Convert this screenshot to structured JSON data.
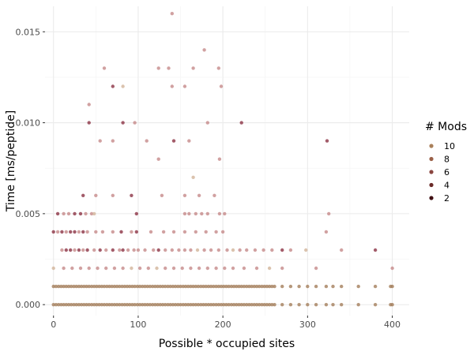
{
  "chart_data": {
    "type": "scatter",
    "xlabel": "Possible * occupied sites",
    "ylabel": "Time [ms/peptide]",
    "xlim": [
      -10,
      420
    ],
    "ylim": [
      -0.0006,
      0.0164
    ],
    "x_ticks": [
      0,
      100,
      200,
      300,
      400
    ],
    "x_tick_labels": [
      "0",
      "100",
      "200",
      "300",
      "400"
    ],
    "y_ticks": [
      0,
      0.005,
      0.01,
      0.015
    ],
    "y_tick_labels": [
      "0.000",
      "0.005",
      "0.010",
      "0.015"
    ],
    "grid": true,
    "legend": {
      "title": "# Mods",
      "placement": "right",
      "entries": [
        {
          "label": "10",
          "value": 10,
          "color": "#a9805a"
        },
        {
          "label": "8",
          "value": 8,
          "color": "#9a6048"
        },
        {
          "label": "6",
          "value": 6,
          "color": "#8a4640"
        },
        {
          "label": "4",
          "value": 4,
          "color": "#6a2a28"
        },
        {
          "label": "2",
          "value": 2,
          "color": "#3f0f12"
        }
      ]
    },
    "point_colors": {
      "pale": "#d2b49a",
      "pink": "#c58a8a",
      "brown": "#a47e5b",
      "dark": "#8c3345"
    },
    "points": [
      {
        "x": 140,
        "y": 0.016,
        "c": "pink"
      },
      {
        "x": 178,
        "y": 0.014,
        "c": "pink"
      },
      {
        "x": 60,
        "y": 0.013,
        "c": "pink"
      },
      {
        "x": 124,
        "y": 0.013,
        "c": "pink"
      },
      {
        "x": 136,
        "y": 0.013,
        "c": "pink"
      },
      {
        "x": 165,
        "y": 0.013,
        "c": "pink"
      },
      {
        "x": 195,
        "y": 0.013,
        "c": "pink"
      },
      {
        "x": 70,
        "y": 0.012,
        "c": "dark"
      },
      {
        "x": 82,
        "y": 0.012,
        "c": "pale"
      },
      {
        "x": 140,
        "y": 0.012,
        "c": "pink"
      },
      {
        "x": 155,
        "y": 0.012,
        "c": "pink"
      },
      {
        "x": 198,
        "y": 0.012,
        "c": "pink"
      },
      {
        "x": 42,
        "y": 0.011,
        "c": "pink"
      },
      {
        "x": 42,
        "y": 0.01,
        "c": "dark"
      },
      {
        "x": 82,
        "y": 0.01,
        "c": "dark"
      },
      {
        "x": 96,
        "y": 0.01,
        "c": "pink"
      },
      {
        "x": 182,
        "y": 0.01,
        "c": "pink"
      },
      {
        "x": 222,
        "y": 0.01,
        "c": "dark"
      },
      {
        "x": 55,
        "y": 0.009,
        "c": "pink"
      },
      {
        "x": 70,
        "y": 0.009,
        "c": "pink"
      },
      {
        "x": 110,
        "y": 0.009,
        "c": "pink"
      },
      {
        "x": 142,
        "y": 0.009,
        "c": "dark"
      },
      {
        "x": 160,
        "y": 0.009,
        "c": "pink"
      },
      {
        "x": 323,
        "y": 0.009,
        "c": "dark"
      },
      {
        "x": 124,
        "y": 0.008,
        "c": "pink"
      },
      {
        "x": 196,
        "y": 0.008,
        "c": "pink"
      },
      {
        "x": 165,
        "y": 0.007,
        "c": "pale"
      },
      {
        "x": 35,
        "y": 0.006,
        "c": "dark"
      },
      {
        "x": 50,
        "y": 0.006,
        "c": "pink"
      },
      {
        "x": 70,
        "y": 0.006,
        "c": "pink"
      },
      {
        "x": 92,
        "y": 0.006,
        "c": "dark"
      },
      {
        "x": 128,
        "y": 0.006,
        "c": "pink"
      },
      {
        "x": 155,
        "y": 0.006,
        "c": "pink"
      },
      {
        "x": 172,
        "y": 0.006,
        "c": "pink"
      },
      {
        "x": 190,
        "y": 0.006,
        "c": "pink"
      },
      {
        "x": 5,
        "y": 0.005,
        "c": "dark"
      },
      {
        "x": 12,
        "y": 0.005,
        "c": "pink"
      },
      {
        "x": 18,
        "y": 0.005,
        "c": "pink"
      },
      {
        "x": 25,
        "y": 0.005,
        "c": "dark"
      },
      {
        "x": 32,
        "y": 0.005,
        "c": "dark"
      },
      {
        "x": 38,
        "y": 0.005,
        "c": "pink"
      },
      {
        "x": 45,
        "y": 0.005,
        "c": "pink"
      },
      {
        "x": 48,
        "y": 0.005,
        "c": "pale"
      },
      {
        "x": 98,
        "y": 0.005,
        "c": "dark"
      },
      {
        "x": 155,
        "y": 0.005,
        "c": "pink"
      },
      {
        "x": 160,
        "y": 0.005,
        "c": "pink"
      },
      {
        "x": 168,
        "y": 0.005,
        "c": "pink"
      },
      {
        "x": 175,
        "y": 0.005,
        "c": "pink"
      },
      {
        "x": 182,
        "y": 0.005,
        "c": "pink"
      },
      {
        "x": 196,
        "y": 0.005,
        "c": "pink"
      },
      {
        "x": 202,
        "y": 0.005,
        "c": "pink"
      },
      {
        "x": 325,
        "y": 0.005,
        "c": "pink"
      },
      {
        "x": 0,
        "y": 0.004,
        "c": "dark"
      },
      {
        "x": 5,
        "y": 0.004,
        "c": "pink"
      },
      {
        "x": 10,
        "y": 0.004,
        "c": "dark"
      },
      {
        "x": 15,
        "y": 0.004,
        "c": "pink"
      },
      {
        "x": 20,
        "y": 0.004,
        "c": "dark"
      },
      {
        "x": 25,
        "y": 0.004,
        "c": "dark"
      },
      {
        "x": 30,
        "y": 0.004,
        "c": "pink"
      },
      {
        "x": 35,
        "y": 0.004,
        "c": "dark"
      },
      {
        "x": 40,
        "y": 0.004,
        "c": "pink"
      },
      {
        "x": 50,
        "y": 0.004,
        "c": "pink"
      },
      {
        "x": 58,
        "y": 0.004,
        "c": "pink"
      },
      {
        "x": 70,
        "y": 0.004,
        "c": "pink"
      },
      {
        "x": 80,
        "y": 0.004,
        "c": "dark"
      },
      {
        "x": 92,
        "y": 0.004,
        "c": "pink"
      },
      {
        "x": 98,
        "y": 0.004,
        "c": "dark"
      },
      {
        "x": 115,
        "y": 0.004,
        "c": "pink"
      },
      {
        "x": 130,
        "y": 0.004,
        "c": "pink"
      },
      {
        "x": 142,
        "y": 0.004,
        "c": "pink"
      },
      {
        "x": 155,
        "y": 0.004,
        "c": "pink"
      },
      {
        "x": 168,
        "y": 0.004,
        "c": "pink"
      },
      {
        "x": 180,
        "y": 0.004,
        "c": "pink"
      },
      {
        "x": 192,
        "y": 0.004,
        "c": "pink"
      },
      {
        "x": 200,
        "y": 0.004,
        "c": "pink"
      },
      {
        "x": 322,
        "y": 0.004,
        "c": "pink"
      },
      {
        "x": 10,
        "y": 0.003,
        "c": "pink"
      },
      {
        "x": 15,
        "y": 0.003,
        "c": "dark"
      },
      {
        "x": 20,
        "y": 0.003,
        "c": "dark"
      },
      {
        "x": 25,
        "y": 0.003,
        "c": "pink"
      },
      {
        "x": 30,
        "y": 0.003,
        "c": "dark"
      },
      {
        "x": 35,
        "y": 0.003,
        "c": "pink"
      },
      {
        "x": 40,
        "y": 0.003,
        "c": "dark"
      },
      {
        "x": 48,
        "y": 0.003,
        "c": "pink"
      },
      {
        "x": 55,
        "y": 0.003,
        "c": "dark"
      },
      {
        "x": 62,
        "y": 0.003,
        "c": "pink"
      },
      {
        "x": 70,
        "y": 0.003,
        "c": "dark"
      },
      {
        "x": 78,
        "y": 0.003,
        "c": "pink"
      },
      {
        "x": 82,
        "y": 0.003,
        "c": "dark"
      },
      {
        "x": 88,
        "y": 0.003,
        "c": "pink"
      },
      {
        "x": 95,
        "y": 0.003,
        "c": "pink"
      },
      {
        "x": 100,
        "y": 0.003,
        "c": "pink"
      },
      {
        "x": 108,
        "y": 0.003,
        "c": "pink"
      },
      {
        "x": 118,
        "y": 0.003,
        "c": "pink"
      },
      {
        "x": 124,
        "y": 0.003,
        "c": "dark"
      },
      {
        "x": 132,
        "y": 0.003,
        "c": "pink"
      },
      {
        "x": 140,
        "y": 0.003,
        "c": "pink"
      },
      {
        "x": 148,
        "y": 0.003,
        "c": "pink"
      },
      {
        "x": 155,
        "y": 0.003,
        "c": "pink"
      },
      {
        "x": 162,
        "y": 0.003,
        "c": "pink"
      },
      {
        "x": 170,
        "y": 0.003,
        "c": "pale"
      },
      {
        "x": 178,
        "y": 0.003,
        "c": "pink"
      },
      {
        "x": 186,
        "y": 0.003,
        "c": "pink"
      },
      {
        "x": 195,
        "y": 0.003,
        "c": "pink"
      },
      {
        "x": 205,
        "y": 0.003,
        "c": "pink"
      },
      {
        "x": 212,
        "y": 0.003,
        "c": "pale"
      },
      {
        "x": 220,
        "y": 0.003,
        "c": "pink"
      },
      {
        "x": 228,
        "y": 0.003,
        "c": "pink"
      },
      {
        "x": 238,
        "y": 0.003,
        "c": "pink"
      },
      {
        "x": 248,
        "y": 0.003,
        "c": "pink"
      },
      {
        "x": 258,
        "y": 0.003,
        "c": "pink"
      },
      {
        "x": 270,
        "y": 0.003,
        "c": "dark"
      },
      {
        "x": 280,
        "y": 0.003,
        "c": "pink"
      },
      {
        "x": 298,
        "y": 0.003,
        "c": "pale"
      },
      {
        "x": 340,
        "y": 0.003,
        "c": "pink"
      },
      {
        "x": 380,
        "y": 0.003,
        "c": "dark"
      },
      {
        "x": 0,
        "y": 0.002,
        "c": "pale"
      },
      {
        "x": 12,
        "y": 0.002,
        "c": "pink"
      },
      {
        "x": 22,
        "y": 0.002,
        "c": "pink"
      },
      {
        "x": 32,
        "y": 0.002,
        "c": "pink"
      },
      {
        "x": 42,
        "y": 0.002,
        "c": "pink"
      },
      {
        "x": 52,
        "y": 0.002,
        "c": "pink"
      },
      {
        "x": 62,
        "y": 0.002,
        "c": "pink"
      },
      {
        "x": 72,
        "y": 0.002,
        "c": "pink"
      },
      {
        "x": 82,
        "y": 0.002,
        "c": "pink"
      },
      {
        "x": 92,
        "y": 0.002,
        "c": "pale"
      },
      {
        "x": 102,
        "y": 0.002,
        "c": "pink"
      },
      {
        "x": 112,
        "y": 0.002,
        "c": "pink"
      },
      {
        "x": 122,
        "y": 0.002,
        "c": "pale"
      },
      {
        "x": 132,
        "y": 0.002,
        "c": "pink"
      },
      {
        "x": 142,
        "y": 0.002,
        "c": "pink"
      },
      {
        "x": 152,
        "y": 0.002,
        "c": "pink"
      },
      {
        "x": 162,
        "y": 0.002,
        "c": "pink"
      },
      {
        "x": 172,
        "y": 0.002,
        "c": "pink"
      },
      {
        "x": 182,
        "y": 0.002,
        "c": "pink"
      },
      {
        "x": 192,
        "y": 0.002,
        "c": "pink"
      },
      {
        "x": 202,
        "y": 0.002,
        "c": "pink"
      },
      {
        "x": 212,
        "y": 0.002,
        "c": "pink"
      },
      {
        "x": 225,
        "y": 0.002,
        "c": "pink"
      },
      {
        "x": 240,
        "y": 0.002,
        "c": "pink"
      },
      {
        "x": 255,
        "y": 0.002,
        "c": "pale"
      },
      {
        "x": 270,
        "y": 0.002,
        "c": "pink"
      },
      {
        "x": 310,
        "y": 0.002,
        "c": "pink"
      },
      {
        "x": 400,
        "y": 0.002,
        "c": "pink"
      }
    ],
    "dense_rows": [
      {
        "y": 0.001,
        "x_start": 0,
        "x_end": 262,
        "step": 3,
        "c": "brown"
      },
      {
        "y": 0.0,
        "x_start": 0,
        "x_end": 262,
        "step": 3,
        "c": "brown"
      }
    ],
    "sparse_rows": [
      {
        "y": 0.001,
        "xs": [
          270,
          280,
          290,
          300,
          310,
          322,
          330,
          340,
          360,
          380,
          398,
          400
        ],
        "c": "brown"
      },
      {
        "y": 0.0,
        "xs": [
          270,
          280,
          290,
          300,
          310,
          322,
          330,
          340,
          360,
          380,
          398,
          400
        ],
        "c": "brown"
      }
    ]
  }
}
